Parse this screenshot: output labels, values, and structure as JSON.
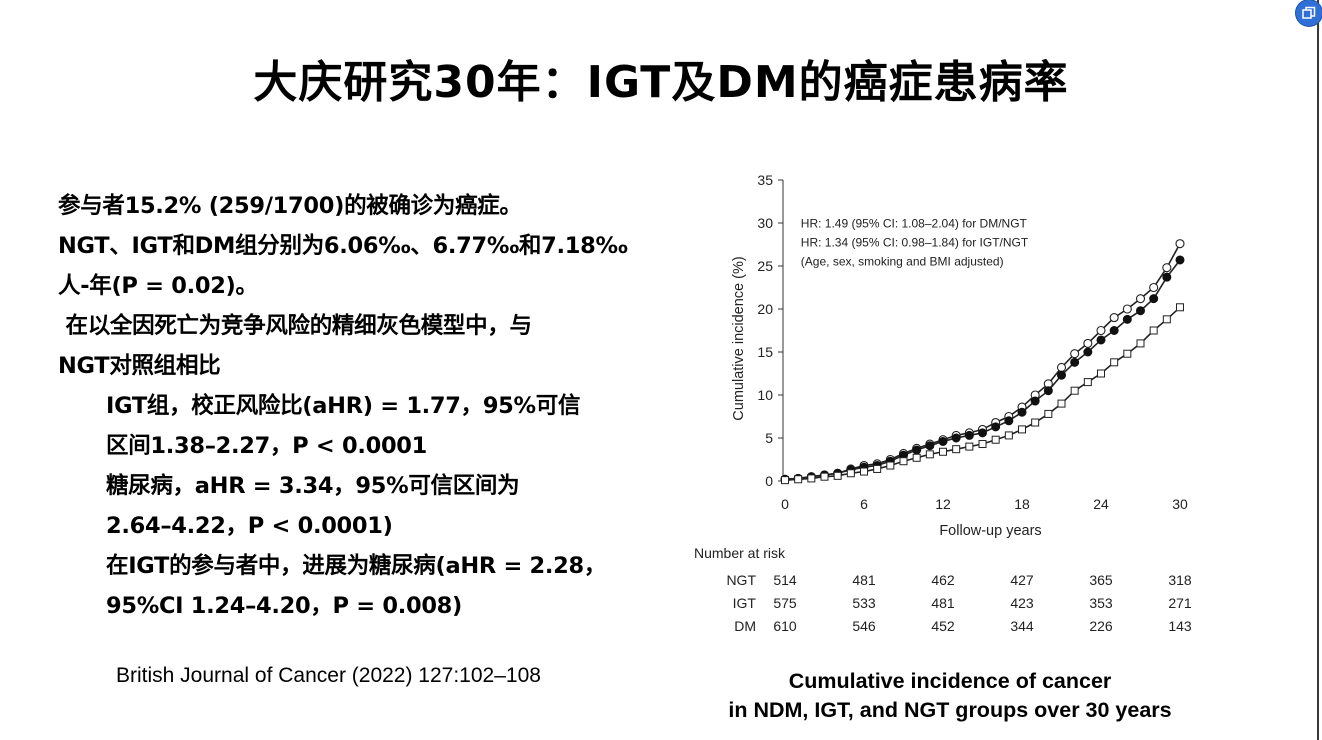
{
  "title": "大庆研究30年：IGT及DM的癌症患病率",
  "body_lines": [
    "参与者15.2% (259/1700)的被确诊为癌症。",
    "NGT、IGT和DM组分别为6.06‰、6.77‰和7.18‰",
    "人-年(P = 0.02)。",
    " 在以全因死亡为竞争风险的精细灰色模型中，与",
    "NGT对照组相比",
    "IGT组，校正风险比(aHR) = 1.77，95%可信",
    "区间1.38–2.27，P < 0.0001",
    "糖尿病，aHR = 3.34，95%可信区间为",
    "2.64–4.22，P < 0.0001)",
    "在IGT的参与者中，进展为糖尿病(aHR = 2.28，",
    "95%CI 1.24–4.20，P = 0.008)"
  ],
  "citation": "British Journal of Cancer (2022) 127:102–108",
  "caption": {
    "line1": "Cumulative incidence of cancer",
    "line2": "in NDM, IGT, and NGT groups over 30 years"
  },
  "icons": {
    "corner": "window-restore-icon"
  },
  "colors": {
    "accent_badge": "#2f6fd6",
    "text": "#000000",
    "chart_line": "#222222"
  },
  "chart_data": {
    "type": "line",
    "title": "",
    "xlabel": "Follow-up years",
    "ylabel": "Cumulative incidence (%)",
    "xlim": [
      0,
      30
    ],
    "ylim": [
      0,
      35
    ],
    "x_ticks": [
      0,
      6,
      12,
      18,
      24,
      30
    ],
    "y_ticks": [
      0,
      5,
      10,
      15,
      20,
      25,
      30,
      35
    ],
    "legend_position": "top-left",
    "annotations": [
      "HR: 1.49 (95% CI: 1.08–2.04) for DM/NGT",
      "HR: 1.34 (95% CI: 0.98–1.84) for IGT/NGT",
      "(Age, sex, smoking and BMI adjusted)"
    ],
    "x": [
      0,
      1,
      2,
      3,
      4,
      5,
      6,
      7,
      8,
      9,
      10,
      11,
      12,
      13,
      14,
      15,
      16,
      17,
      18,
      19,
      20,
      21,
      22,
      23,
      24,
      25,
      26,
      27,
      28,
      29,
      30
    ],
    "series": [
      {
        "marker": "open-circle",
        "values": [
          0.2,
          0.3,
          0.5,
          0.7,
          0.9,
          1.4,
          1.8,
          2.0,
          2.5,
          3.2,
          3.8,
          4.3,
          4.8,
          5.3,
          5.6,
          6.0,
          6.8,
          7.5,
          8.6,
          10.0,
          11.3,
          13.2,
          14.8,
          16.0,
          17.5,
          19.0,
          20.0,
          21.2,
          22.5,
          24.8,
          27.6
        ]
      },
      {
        "marker": "filled-circle",
        "values": [
          0.2,
          0.3,
          0.5,
          0.7,
          0.9,
          1.3,
          1.6,
          1.8,
          2.3,
          3.0,
          3.6,
          4.1,
          4.6,
          5.0,
          5.3,
          5.6,
          6.3,
          7.0,
          8.0,
          9.3,
          10.5,
          12.3,
          13.8,
          15.0,
          16.4,
          17.5,
          18.8,
          19.8,
          21.2,
          23.7,
          25.7
        ]
      },
      {
        "marker": "open-square",
        "values": [
          0.1,
          0.2,
          0.3,
          0.5,
          0.6,
          0.9,
          1.1,
          1.4,
          1.8,
          2.3,
          2.7,
          3.1,
          3.4,
          3.7,
          4.0,
          4.3,
          4.8,
          5.3,
          6.0,
          6.8,
          7.8,
          9.0,
          10.5,
          11.5,
          12.5,
          13.8,
          14.8,
          16.0,
          17.5,
          18.8,
          20.2
        ]
      }
    ],
    "risk_table": {
      "title": "Number at risk",
      "years": [
        0,
        6,
        12,
        18,
        24,
        30
      ],
      "rows": [
        {
          "label": "NGT",
          "values": [
            514,
            481,
            462,
            427,
            365,
            318
          ]
        },
        {
          "label": "IGT",
          "values": [
            575,
            533,
            481,
            423,
            353,
            271
          ]
        },
        {
          "label": "DM",
          "values": [
            610,
            546,
            452,
            344,
            226,
            143
          ]
        }
      ]
    }
  }
}
